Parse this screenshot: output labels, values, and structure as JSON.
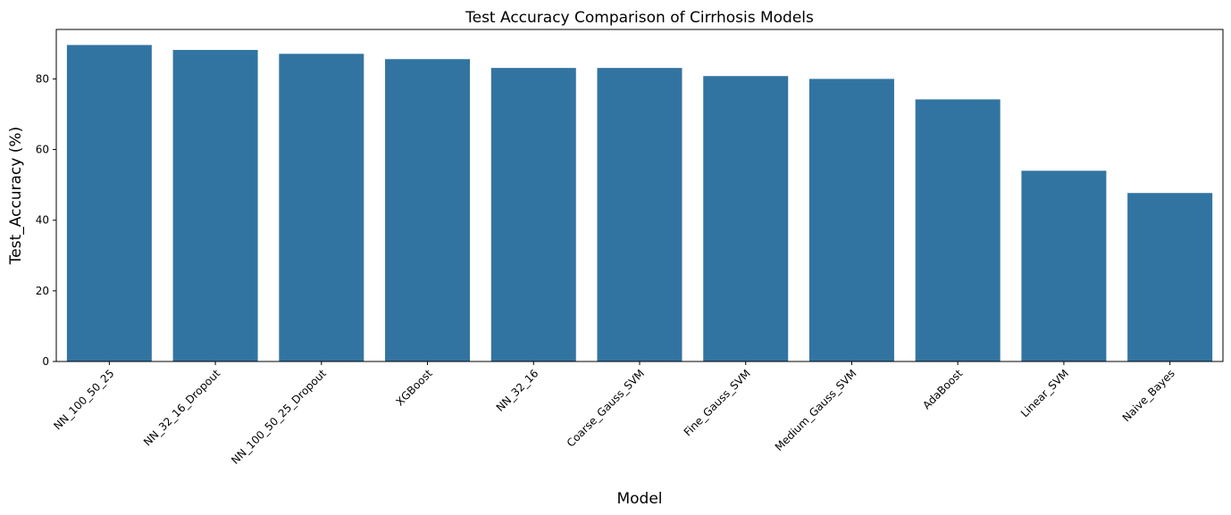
{
  "chart_data": {
    "type": "bar",
    "title": "Test Accuracy Comparison of Cirrhosis Models",
    "xlabel": "Model",
    "ylabel": "Test_Accuracy (%)",
    "categories": [
      "NN_100_50_25",
      "NN_32_16_Dropout",
      "NN_100_50_25_Dropout",
      "XGBoost",
      "NN_32_16",
      "Coarse_Gauss_SVM",
      "Fine_Gauss_SVM",
      "Medium_Gauss_SVM",
      "AdaBoost",
      "Linear_SVM",
      "Naive_Bayes"
    ],
    "values": [
      89.6,
      88.2,
      87.1,
      85.6,
      83.1,
      83.1,
      80.8,
      80.0,
      74.2,
      54.0,
      47.7
    ],
    "ylim": [
      0,
      94
    ],
    "yticks": [
      0,
      20,
      40,
      60,
      80
    ],
    "bar_color": "#3274a1",
    "grid": false,
    "legend": "none"
  }
}
